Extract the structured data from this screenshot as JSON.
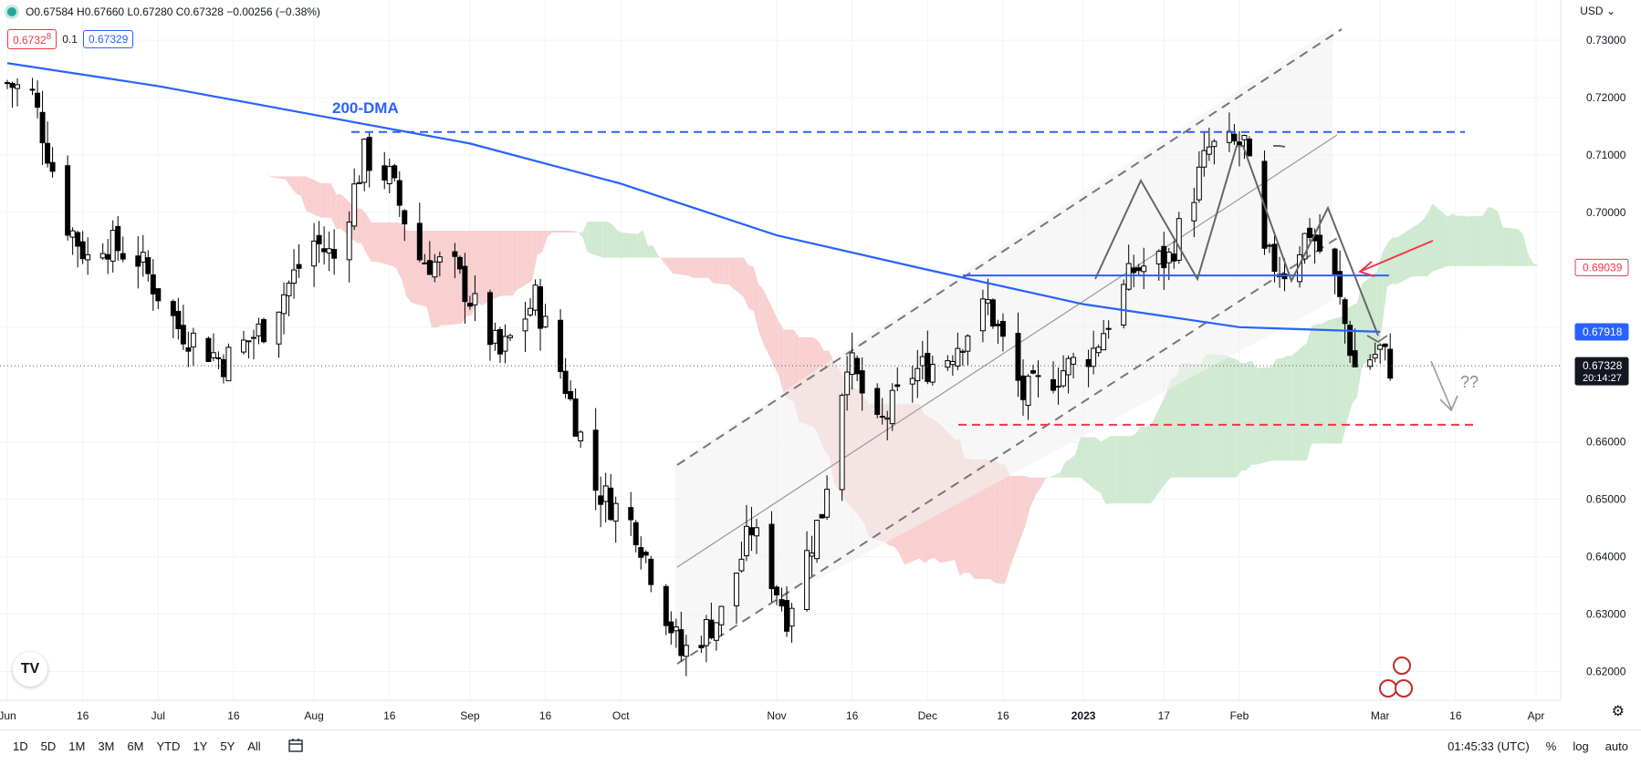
{
  "ohlc_text": "O0.67584 H0.67660 L0.67280 C0.67328 −0.00256 (−0.38%)",
  "bid_chip": "0.6732",
  "bid_chip_sup": "8",
  "spread": "0.1",
  "ask_chip": "0.67329",
  "currency": "USD",
  "time_display": "01:45:33 (UTC)",
  "logo_text": "TV",
  "toolbar": {
    "ranges": [
      "1D",
      "5D",
      "1M",
      "3M",
      "6M",
      "YTD",
      "1Y",
      "5Y",
      "All"
    ],
    "percent": "%",
    "log": "log",
    "auto": "auto"
  },
  "colors": {
    "up": "#ffffff",
    "down": "#000000",
    "dma": "#2962ff",
    "cloud_bear": "#f8c8c8",
    "cloud_bull": "#c8e6c9",
    "red_label": "#f23645"
  },
  "chart_data": {
    "type": "candlestick",
    "title": "",
    "annotation_dma": "200-DMA",
    "annotation_question": "??",
    "ylim": [
      0.615,
      0.737
    ],
    "y_ticks": [
      "0.73000",
      "0.72000",
      "0.71000",
      "0.70000",
      "0.68000",
      "0.66000",
      "0.65000",
      "0.64000",
      "0.63000",
      "0.62000"
    ],
    "y_tick_values": [
      0.73,
      0.72,
      0.71,
      0.7,
      0.68,
      0.66,
      0.65,
      0.64,
      0.63,
      0.62
    ],
    "x_labels": [
      "Jun",
      "16",
      "Jul",
      "16",
      "Aug",
      "16",
      "Sep",
      "16",
      "Oct",
      "Nov",
      "16",
      "Dec",
      "16",
      "2023",
      "17",
      "Feb",
      "Mar",
      "16",
      "Apr"
    ],
    "x_label_dates": [
      "2022-06-01",
      "2022-06-16",
      "2022-07-01",
      "2022-07-16",
      "2022-08-01",
      "2022-08-16",
      "2022-09-01",
      "2022-09-16",
      "2022-10-01",
      "2022-11-01",
      "2022-11-16",
      "2022-12-01",
      "2022-12-16",
      "2023-01-01",
      "2023-01-17",
      "2023-02-01",
      "2023-03-01",
      "2023-03-16",
      "2023-04-01"
    ],
    "price_labels": [
      {
        "text": "0.69039",
        "value": 0.69039,
        "style": "red-outline"
      },
      {
        "text": "0.67918",
        "value": 0.67918,
        "style": "blue"
      },
      {
        "text": "0.67328",
        "value": 0.67328,
        "style": "black",
        "sub": "20:14:27"
      }
    ],
    "keypoints": [
      {
        "date": "2022-06-01",
        "value": 0.7225
      },
      {
        "date": "2022-06-06",
        "value": 0.7205
      },
      {
        "date": "2022-06-13",
        "value": 0.698
      },
      {
        "date": "2022-06-17",
        "value": 0.692
      },
      {
        "date": "2022-06-20",
        "value": 0.695
      },
      {
        "date": "2022-06-27",
        "value": 0.692
      },
      {
        "date": "2022-07-05",
        "value": 0.68
      },
      {
        "date": "2022-07-14",
        "value": 0.674
      },
      {
        "date": "2022-07-22",
        "value": 0.68
      },
      {
        "date": "2022-08-01",
        "value": 0.695
      },
      {
        "date": "2022-08-05",
        "value": 0.692
      },
      {
        "date": "2022-08-11",
        "value": 0.71
      },
      {
        "date": "2022-08-16",
        "value": 0.706
      },
      {
        "date": "2022-08-22",
        "value": 0.692
      },
      {
        "date": "2022-08-29",
        "value": 0.69
      },
      {
        "date": "2022-09-07",
        "value": 0.675
      },
      {
        "date": "2022-09-14",
        "value": 0.685
      },
      {
        "date": "2022-09-20",
        "value": 0.67
      },
      {
        "date": "2022-09-26",
        "value": 0.652
      },
      {
        "date": "2022-10-04",
        "value": 0.645
      },
      {
        "date": "2022-10-13",
        "value": 0.623
      },
      {
        "date": "2022-10-21",
        "value": 0.63
      },
      {
        "date": "2022-10-27",
        "value": 0.645
      },
      {
        "date": "2022-11-03",
        "value": 0.63
      },
      {
        "date": "2022-11-10",
        "value": 0.648
      },
      {
        "date": "2022-11-15",
        "value": 0.675
      },
      {
        "date": "2022-11-21",
        "value": 0.662
      },
      {
        "date": "2022-11-28",
        "value": 0.672
      },
      {
        "date": "2022-12-05",
        "value": 0.675
      },
      {
        "date": "2022-12-13",
        "value": 0.684
      },
      {
        "date": "2022-12-20",
        "value": 0.668
      },
      {
        "date": "2023-01-03",
        "value": 0.676
      },
      {
        "date": "2023-01-11",
        "value": 0.69
      },
      {
        "date": "2023-01-18",
        "value": 0.692
      },
      {
        "date": "2023-01-26",
        "value": 0.711
      },
      {
        "date": "2023-02-02",
        "value": 0.712
      },
      {
        "date": "2023-02-06",
        "value": 0.692
      },
      {
        "date": "2023-02-10",
        "value": 0.69
      },
      {
        "date": "2023-02-15",
        "value": 0.697
      },
      {
        "date": "2023-02-20",
        "value": 0.688
      },
      {
        "date": "2023-02-24",
        "value": 0.673
      },
      {
        "date": "2023-03-01",
        "value": 0.676
      },
      {
        "date": "2023-03-03",
        "value": 0.6733
      }
    ],
    "dma_200": [
      {
        "date": "2022-06-01",
        "value": 0.726
      },
      {
        "date": "2022-07-01",
        "value": 0.722
      },
      {
        "date": "2022-08-01",
        "value": 0.717
      },
      {
        "date": "2022-09-01",
        "value": 0.712
      },
      {
        "date": "2022-10-01",
        "value": 0.705
      },
      {
        "date": "2022-11-01",
        "value": 0.696
      },
      {
        "date": "2022-12-01",
        "value": 0.69
      },
      {
        "date": "2023-01-01",
        "value": 0.684
      },
      {
        "date": "2023-02-01",
        "value": 0.68
      },
      {
        "date": "2023-03-01",
        "value": 0.6792
      }
    ],
    "resistance_level": 0.714,
    "neckline_level": 0.689,
    "support_level": 0.663
  }
}
